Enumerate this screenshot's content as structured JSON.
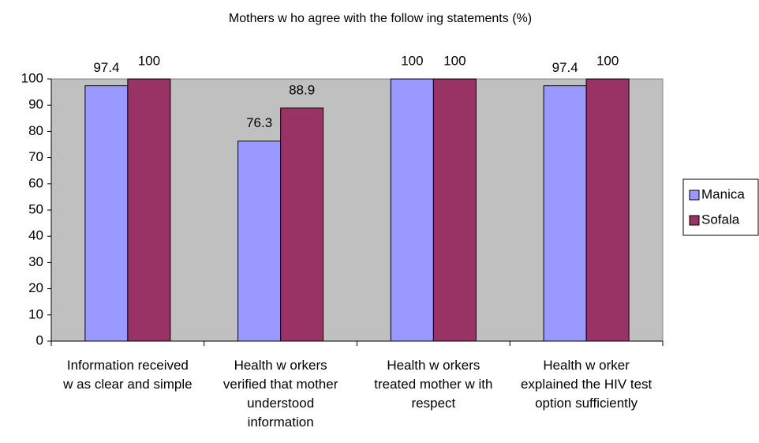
{
  "chart_data": {
    "type": "bar",
    "title": "Mothers w ho agree with the follow ing statements (%)",
    "categories": [
      "Information received w as clear and simple",
      "Health w orkers verified that mother understood information",
      "Health w orkers treated mother w ith respect",
      "Health w orker explained the HIV test option sufficiently"
    ],
    "series": [
      {
        "name": "Manica",
        "color": "#9999ff",
        "values": [
          97.4,
          76.3,
          100,
          97.4
        ]
      },
      {
        "name": "Sofala",
        "color": "#993366",
        "values": [
          100,
          88.9,
          100,
          100
        ]
      }
    ],
    "ylim": [
      0,
      100
    ],
    "yticks": [
      0,
      10,
      20,
      30,
      40,
      50,
      60,
      70,
      80,
      90,
      100
    ],
    "grid": false,
    "legend": "right",
    "plot_background": "#c0c0c0"
  }
}
